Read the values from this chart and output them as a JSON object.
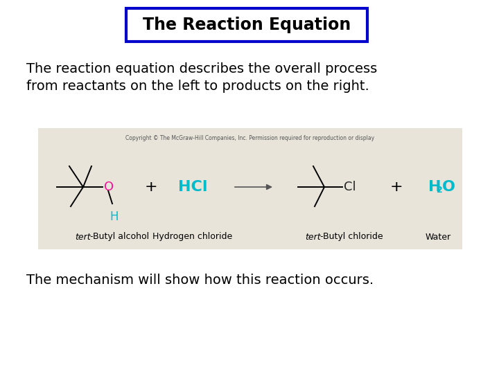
{
  "title": "The Reaction Equation",
  "title_box_color": "#0000cc",
  "title_text_color": "#000000",
  "bg_color": "#ffffff",
  "body_text1_line1": "The reaction equation describes the overall process",
  "body_text1_line2": "from reactants on the left to products on the right.",
  "body_text2": "The mechanism will show how this reaction occurs.",
  "body_text_color": "#000000",
  "body_fontsize": 14,
  "reaction_box_bg": "#e8e4da",
  "copyright_text": "Copyright © The McGraw-Hill Companies, Inc. Permission required for reproduction or display",
  "copyright_color": "#555555",
  "copyright_fontsize": 5.5,
  "label_color": "#000000",
  "label_fontsize": 9,
  "plus_color": "#000000",
  "arrow_color": "#555555",
  "O_color": "#ee1199",
  "H_color": "#00bbcc",
  "Cl_color": "#222222",
  "HCl_color": "#00bbcc",
  "H2O_color": "#00bbcc",
  "bond_lw": 1.4
}
